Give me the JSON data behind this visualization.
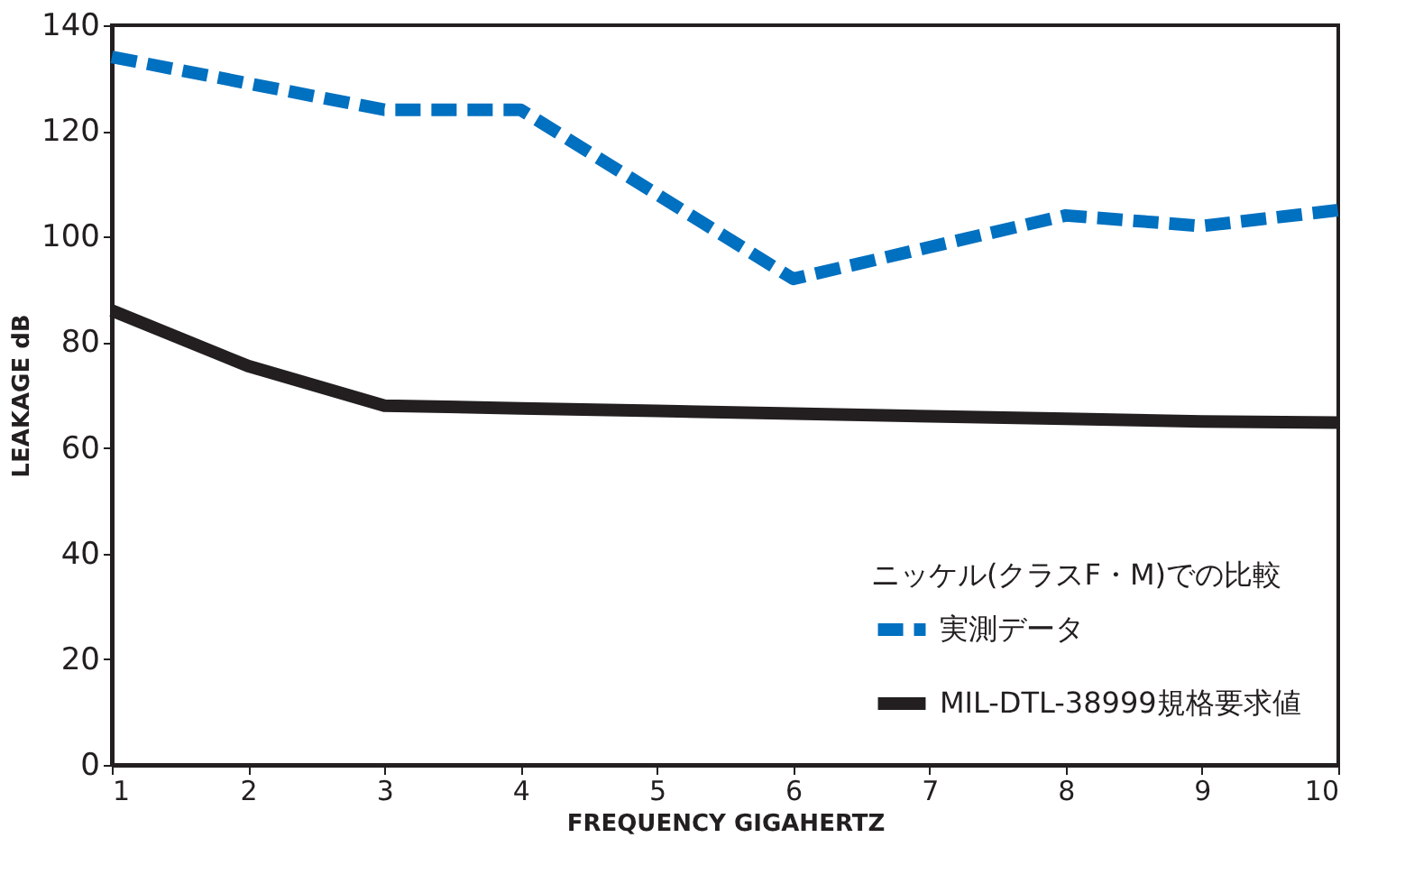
{
  "chart_data": {
    "type": "line",
    "xlabel": "FREQUENCY GIGAHERTZ",
    "ylabel": "LEAKAGE dB",
    "legend_title": "ニッケル(クラスF・M)での比較",
    "x": [
      1,
      2,
      3,
      4,
      5,
      6,
      7,
      8,
      9,
      10
    ],
    "series": [
      {
        "name": "実測データ",
        "color": "#0070c0",
        "line_style": "dashed",
        "values": [
          134,
          129,
          124,
          124,
          108,
          92,
          98,
          104,
          102,
          105
        ]
      },
      {
        "name": "MIL-DTL-38999規格要求値",
        "color": "#231f20",
        "line_style": "solid",
        "values": [
          86,
          75.5,
          68,
          67.5,
          67,
          66.5,
          66,
          65.5,
          65,
          64.8
        ]
      }
    ],
    "xlim": [
      1,
      10
    ],
    "xticks": [
      1,
      2,
      3,
      4,
      5,
      6,
      7,
      8,
      9,
      10
    ],
    "ylim": [
      0,
      140
    ],
    "yticks": [
      0,
      20,
      40,
      60,
      80,
      100,
      120,
      140
    ],
    "grid": false,
    "legend": "bottom right",
    "marker": "none"
  }
}
